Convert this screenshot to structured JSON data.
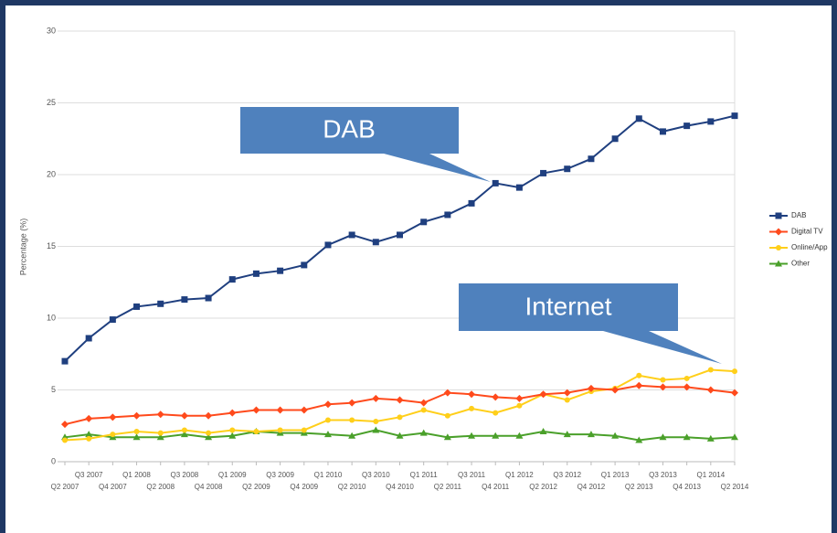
{
  "chart_data": {
    "type": "line",
    "y_label": "Percentage (%)",
    "categories": [
      "Q2 2007",
      "Q3 2007",
      "Q4 2007",
      "Q1 2008",
      "Q2 2008",
      "Q3 2008",
      "Q4 2008",
      "Q1 2009",
      "Q2 2009",
      "Q3 2009",
      "Q4 2009",
      "Q1 2010",
      "Q2 2010",
      "Q3 2010",
      "Q4 2010",
      "Q1 2011",
      "Q2 2011",
      "Q3 2011",
      "Q4 2011",
      "Q1 2012",
      "Q2 2012",
      "Q3 2012",
      "Q4 2012",
      "Q1 2013",
      "Q2 2013",
      "Q3 2013",
      "Q4 2013",
      "Q1 2014",
      "Q2 2014"
    ],
    "series": [
      {
        "name": "DAB",
        "color": "#1f3f7f",
        "marker": "square",
        "values": [
          7.0,
          8.6,
          9.9,
          10.8,
          11.0,
          11.3,
          11.4,
          12.7,
          13.1,
          13.3,
          13.7,
          15.1,
          15.8,
          15.3,
          15.8,
          16.7,
          17.2,
          18.0,
          19.4,
          19.1,
          20.1,
          20.4,
          21.1,
          22.5,
          23.9,
          23.0,
          23.4,
          23.7,
          24.1
        ]
      },
      {
        "name": "Digital TV",
        "color": "#ff4a1c",
        "marker": "diamond",
        "values": [
          2.6,
          3.0,
          3.1,
          3.2,
          3.3,
          3.2,
          3.2,
          3.4,
          3.6,
          3.6,
          3.6,
          4.0,
          4.1,
          4.4,
          4.3,
          4.1,
          4.8,
          4.7,
          4.5,
          4.4,
          4.7,
          4.8,
          5.1,
          5.0,
          5.3,
          5.2,
          5.2,
          5.0,
          4.8
        ]
      },
      {
        "name": "Online/App",
        "color": "#ffcf1a",
        "marker": "star",
        "values": [
          1.5,
          1.6,
          1.9,
          2.1,
          2.0,
          2.2,
          2.0,
          2.2,
          2.1,
          2.2,
          2.2,
          2.9,
          2.9,
          2.8,
          3.1,
          3.6,
          3.2,
          3.7,
          3.4,
          3.9,
          4.7,
          4.3,
          4.9,
          5.1,
          6.0,
          5.7,
          5.8,
          6.4,
          6.3
        ]
      },
      {
        "name": "Other",
        "color": "#4aa02a",
        "marker": "triangle",
        "values": [
          1.7,
          1.9,
          1.7,
          1.7,
          1.7,
          1.9,
          1.7,
          1.8,
          2.1,
          2.0,
          2.0,
          1.9,
          1.8,
          2.2,
          1.8,
          2.0,
          1.7,
          1.8,
          1.8,
          1.8,
          2.1,
          1.9,
          1.9,
          1.8,
          1.5,
          1.7,
          1.7,
          1.6,
          1.7
        ]
      }
    ],
    "ylim": [
      0,
      30
    ],
    "yticks": [
      0,
      5,
      10,
      15,
      20,
      25,
      30
    ],
    "grid": true,
    "legend": "right",
    "annotations": [
      "DAB",
      "Internet"
    ]
  }
}
